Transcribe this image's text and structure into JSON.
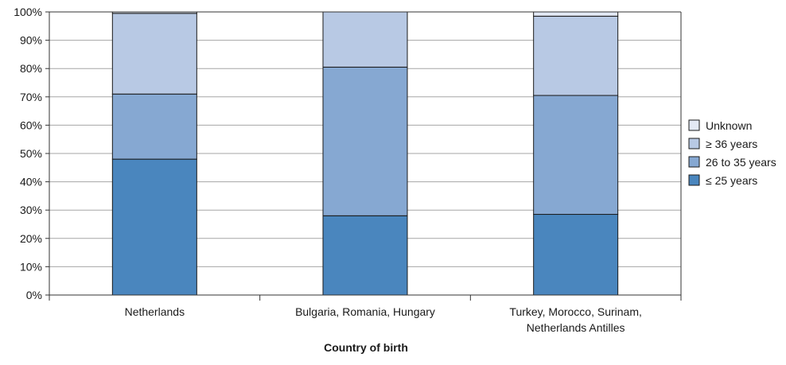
{
  "chart_data": {
    "type": "bar",
    "stacked": true,
    "title": "",
    "xlabel": "Country of birth",
    "ylabel": "",
    "ylim": [
      0,
      100
    ],
    "y_ticks": [
      "0%",
      "10%",
      "20%",
      "30%",
      "40%",
      "50%",
      "60%",
      "70%",
      "80%",
      "90%",
      "100%"
    ],
    "grid": true,
    "legend_position": "right",
    "categories": [
      [
        "Netherlands"
      ],
      [
        "Bulgaria, Romania, Hungary"
      ],
      [
        "Turkey, Morocco, Surinam,",
        "Netherlands Antilles"
      ]
    ],
    "series": [
      {
        "name": "≤ 25 years",
        "color": "#4a86be",
        "values": [
          48,
          28,
          28.5
        ]
      },
      {
        "name": "26 to 35 years",
        "color": "#86a8d2",
        "values": [
          23,
          52.5,
          42
        ]
      },
      {
        "name": "≥ 36 years",
        "color": "#b8c9e4",
        "values": [
          28.5,
          19.5,
          28
        ]
      },
      {
        "name": "Unknown",
        "color": "#e3e9f5",
        "values": [
          0.5,
          0,
          1.5
        ]
      }
    ]
  }
}
